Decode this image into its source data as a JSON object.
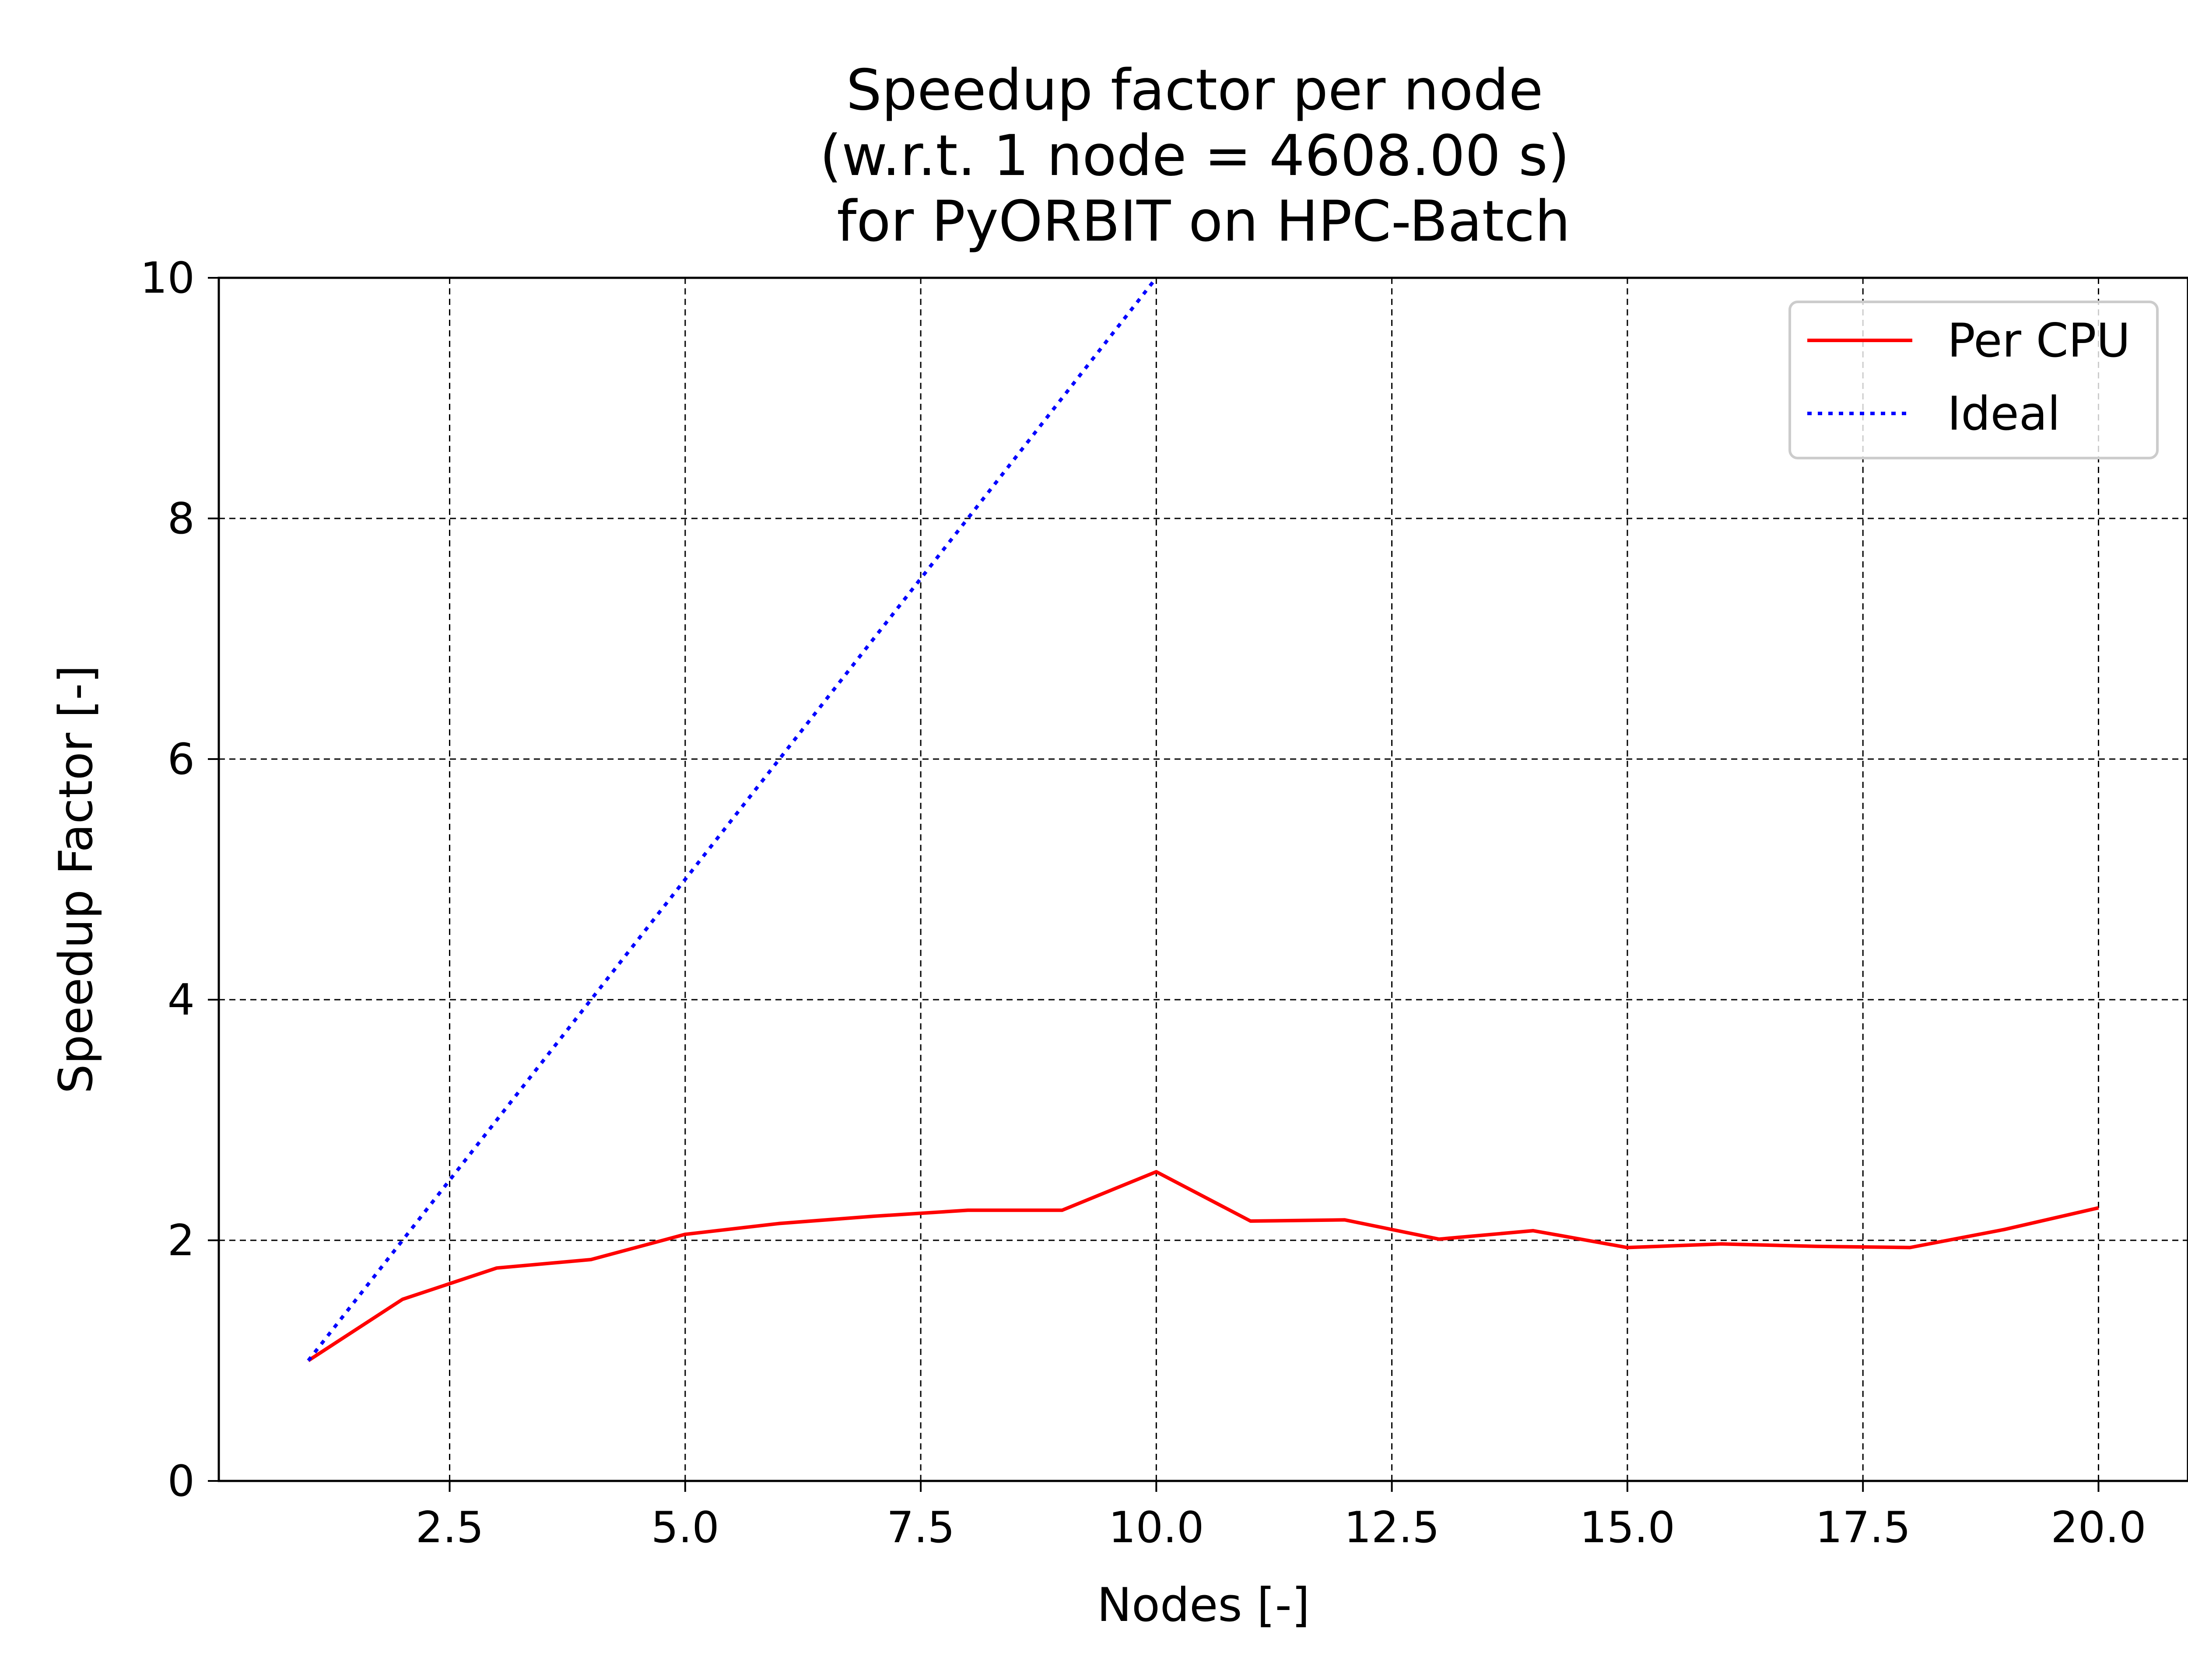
{
  "chart_data": {
    "type": "line",
    "title_lines": [
      "Speedup factor per node",
      "(w.r.t. 1 node = 4608.00 s)",
      " for PyORBIT on HPC-Batch"
    ],
    "xlabel": "Nodes [-]",
    "ylabel": "Speedup Factor [-]",
    "xlim": [
      0.05,
      20.95
    ],
    "ylim": [
      0,
      10
    ],
    "xticks": [
      2.5,
      5.0,
      7.5,
      10.0,
      12.5,
      15.0,
      17.5,
      20.0
    ],
    "xtick_labels": [
      "2.5",
      "5.0",
      "7.5",
      "10.0",
      "12.5",
      "15.0",
      "17.5",
      "20.0"
    ],
    "yticks": [
      0,
      2,
      4,
      6,
      8,
      10
    ],
    "ytick_labels": [
      "0",
      "2",
      "4",
      "6",
      "8",
      "10"
    ],
    "grid": true,
    "legend_position": "top-right",
    "series": [
      {
        "name": "Per CPU",
        "color": "#ff0000",
        "style": "solid",
        "x": [
          1,
          2,
          3,
          4,
          5,
          6,
          7,
          8,
          9,
          10,
          11,
          12,
          13,
          14,
          15,
          16,
          17,
          18,
          19,
          20
        ],
        "y": [
          1.0,
          1.51,
          1.77,
          1.84,
          2.05,
          2.14,
          2.2,
          2.25,
          2.25,
          2.57,
          2.16,
          2.17,
          2.01,
          2.08,
          1.94,
          1.97,
          1.95,
          1.94,
          2.09,
          2.27
        ]
      },
      {
        "name": "Ideal",
        "color": "#0000ff",
        "style": "dotted",
        "x": [
          1,
          2,
          3,
          4,
          5,
          6,
          7,
          8,
          9,
          10
        ],
        "y": [
          1,
          2,
          3,
          4,
          5,
          6,
          7,
          8,
          9,
          10
        ]
      }
    ]
  }
}
